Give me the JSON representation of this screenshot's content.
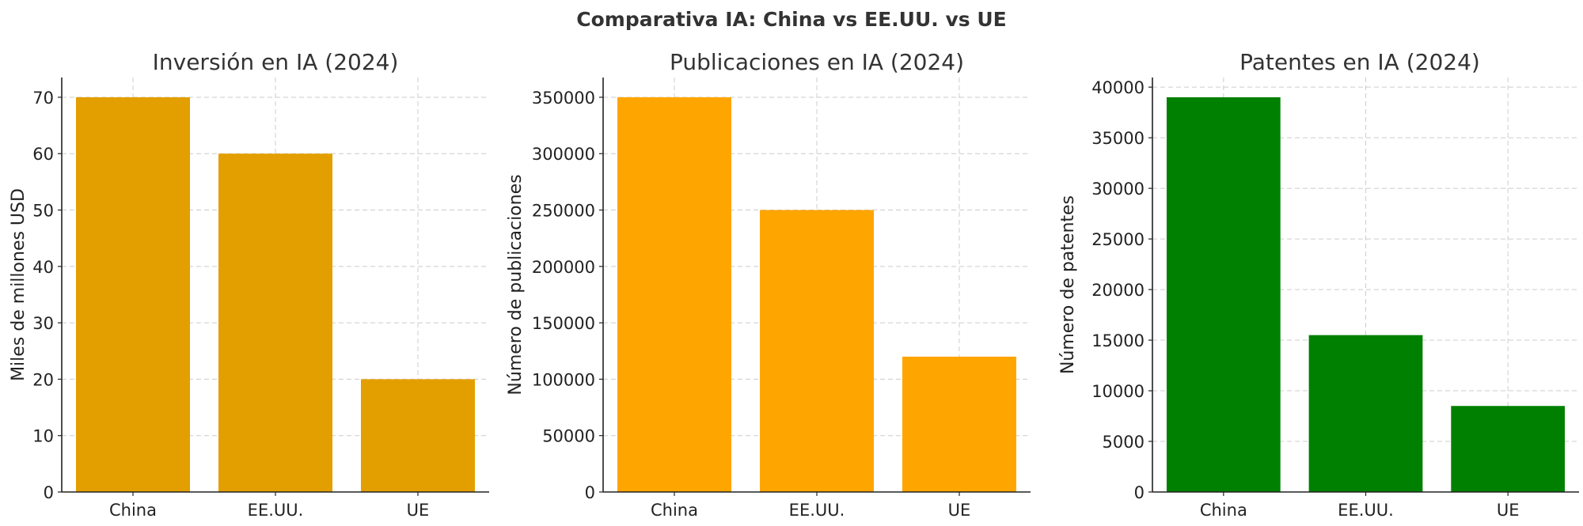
{
  "figure": {
    "suptitle": "Comparativa IA: China vs EE.UU. vs UE"
  },
  "chart_data": [
    {
      "type": "bar",
      "title": "Inversión en IA (2024)",
      "xlabel": "",
      "ylabel": "Miles de millones USD",
      "categories": [
        "China",
        "EE.UU.",
        "UE"
      ],
      "values": [
        70,
        60,
        20
      ],
      "ylim": [
        0,
        73.5
      ],
      "yticks": [
        0,
        10,
        20,
        30,
        40,
        50,
        60,
        70
      ],
      "color": "#E39F00",
      "grid": true
    },
    {
      "type": "bar",
      "title": "Publicaciones en IA (2024)",
      "xlabel": "",
      "ylabel": "Número de publicaciones",
      "categories": [
        "China",
        "EE.UU.",
        "UE"
      ],
      "values": [
        350000,
        250000,
        120000
      ],
      "ylim": [
        0,
        367500
      ],
      "yticks": [
        0,
        50000,
        100000,
        150000,
        200000,
        250000,
        300000,
        350000
      ],
      "color": "#FFA500",
      "grid": true
    },
    {
      "type": "bar",
      "title": "Patentes en IA (2024)",
      "xlabel": "",
      "ylabel": "Número de patentes",
      "categories": [
        "China",
        "EE.UU.",
        "UE"
      ],
      "values": [
        39000,
        15500,
        8500
      ],
      "ylim": [
        0,
        40950
      ],
      "yticks": [
        0,
        5000,
        10000,
        15000,
        20000,
        25000,
        30000,
        35000,
        40000
      ],
      "color": "#008000",
      "grid": true
    }
  ]
}
